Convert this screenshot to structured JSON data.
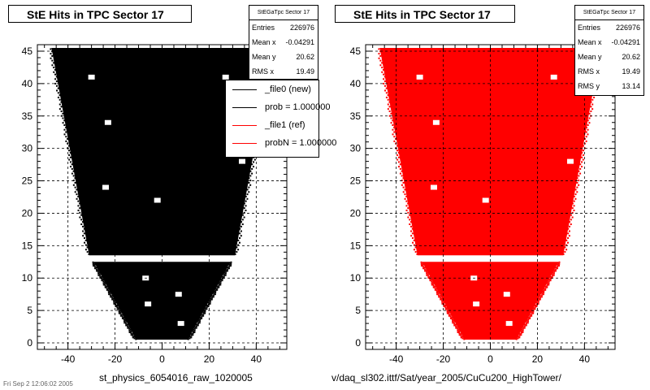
{
  "left_panel": {
    "title": "StE Hits in TPC Sector 17",
    "stats": {
      "header": "StEGaTpc Sector 17",
      "rows": [
        {
          "label": "Entries",
          "value": "226976"
        },
        {
          "label": "Mean x",
          "value": "-0.04291"
        },
        {
          "label": "Mean y",
          "value": "20.62"
        },
        {
          "label": "RMS x",
          "value": "19.49"
        }
      ]
    },
    "legend": [
      {
        "label": "_file0 (new)",
        "color": "#000000"
      },
      {
        "label": "prob = 1.000000",
        "color": "#000000"
      },
      {
        "label": "_file1 (ref)",
        "color": "#ff0000"
      },
      {
        "label": "probN = 1.000000",
        "color": "#ff0000"
      }
    ],
    "footer": "st_physics_6054016_raw_1020005",
    "fill_color": "#000000"
  },
  "right_panel": {
    "title": "StE Hits in TPC Sector 17",
    "stats": {
      "header": "StEGaTpc Sector 17",
      "rows": [
        {
          "label": "Entries",
          "value": "226976"
        },
        {
          "label": "Mean x",
          "value": "-0.04291"
        },
        {
          "label": "Mean y",
          "value": "20.62"
        },
        {
          "label": "RMS x",
          "value": "19.49"
        },
        {
          "label": "RMS y",
          "value": "13.14"
        }
      ]
    },
    "footer": "v/daq_sl302.ittf/Sat/year_2005/CuCu200_HighTower/",
    "fill_color": "#ff0000"
  },
  "corner_text": "Fri Sep 2 12:06:02 2005",
  "chart_data": [
    {
      "type": "scatter",
      "title": "StE Hits in TPC Sector 17",
      "xlim": [
        -53,
        53
      ],
      "ylim": [
        -1,
        46
      ],
      "xticks": [
        -40,
        -20,
        0,
        20,
        40
      ],
      "yticks": [
        0,
        5,
        10,
        15,
        20,
        25,
        30,
        35,
        40,
        45
      ],
      "grid": true,
      "entries": 226976,
      "regions": [
        {
          "name": "outer sector",
          "y_range": [
            13.5,
            45.5
          ],
          "x_half_width_bottom": 31,
          "x_half_width_top": 47
        },
        {
          "name": "inner sector",
          "y_range": [
            0.5,
            12.5
          ],
          "x_half_width_bottom": 11,
          "x_half_width_top": 29
        }
      ],
      "holes": [
        [
          -30,
          41
        ],
        [
          27,
          41
        ],
        [
          -23,
          34
        ],
        [
          34,
          28
        ],
        [
          -24,
          24
        ],
        [
          -2,
          22
        ],
        [
          -6,
          6
        ],
        [
          8,
          3
        ],
        [
          -7,
          10
        ],
        [
          7,
          7.5
        ]
      ]
    },
    {
      "type": "scatter",
      "title": "StE Hits in TPC Sector 17",
      "xlim": [
        -53,
        53
      ],
      "ylim": [
        -1,
        46
      ],
      "xticks": [
        -40,
        -20,
        0,
        20,
        40
      ],
      "yticks": [
        0,
        5,
        10,
        15,
        20,
        25,
        30,
        35,
        40,
        45
      ],
      "grid": true,
      "entries": 226976,
      "regions": [
        {
          "name": "outer sector",
          "y_range": [
            13.5,
            45.5
          ],
          "x_half_width_bottom": 31,
          "x_half_width_top": 47
        },
        {
          "name": "inner sector",
          "y_range": [
            0.5,
            12.5
          ],
          "x_half_width_bottom": 11,
          "x_half_width_top": 29
        }
      ],
      "holes": [
        [
          -30,
          41
        ],
        [
          27,
          41
        ],
        [
          -23,
          34
        ],
        [
          34,
          28
        ],
        [
          -24,
          24
        ],
        [
          -2,
          22
        ],
        [
          -6,
          6
        ],
        [
          8,
          3
        ],
        [
          -7,
          10
        ],
        [
          7,
          7.5
        ]
      ]
    }
  ]
}
